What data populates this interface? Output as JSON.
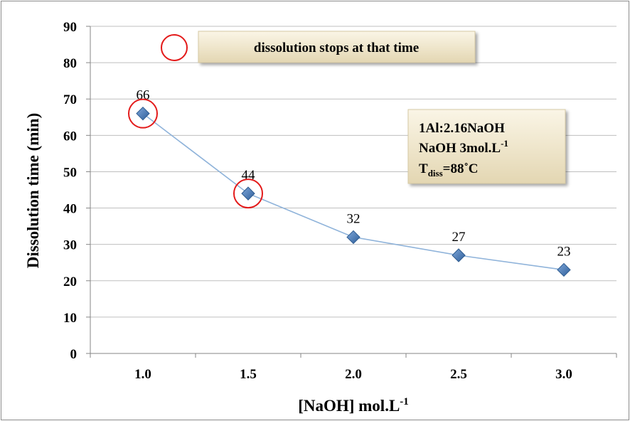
{
  "chart_data": {
    "type": "line",
    "x": [
      1.0,
      1.5,
      2.0,
      2.5,
      3.0
    ],
    "x_tick_labels": [
      "1.0",
      "1.5",
      "2.0",
      "2.5",
      "3.0"
    ],
    "values": [
      66,
      44,
      32,
      27,
      23
    ],
    "data_labels": [
      "66",
      "44",
      "32",
      "27",
      "23"
    ],
    "xlabel": "[NaOH]  mol.L",
    "xlabel_sup": "-1",
    "ylabel": "Dissolution time  (min)",
    "ylim": [
      0,
      90
    ],
    "y_ticks": [
      "0",
      "10",
      "20",
      "30",
      "40",
      "50",
      "60",
      "70",
      "80",
      "90"
    ],
    "grid": true,
    "marker": "diamond",
    "circled_points": [
      1.0,
      1.5
    ],
    "legend_text": "dissolution stops at that time",
    "conditions": {
      "line1": "1Al:2.16NaOH",
      "line2_main": "NaOH 3mol.L",
      "line2_sup": "-1",
      "line3_T": "T",
      "line3_sub": "diss",
      "line3_rest": "=88˚C"
    }
  },
  "colors": {
    "series_line": "#8fb3da",
    "marker_fill": "#4a7ebb",
    "marker_stroke": "#2c5a8f",
    "highlight_circle": "#e31a1a",
    "grid": "#bfbfbf",
    "box_fill": "#efe6cc",
    "box_stroke": "#d6c9a4"
  }
}
